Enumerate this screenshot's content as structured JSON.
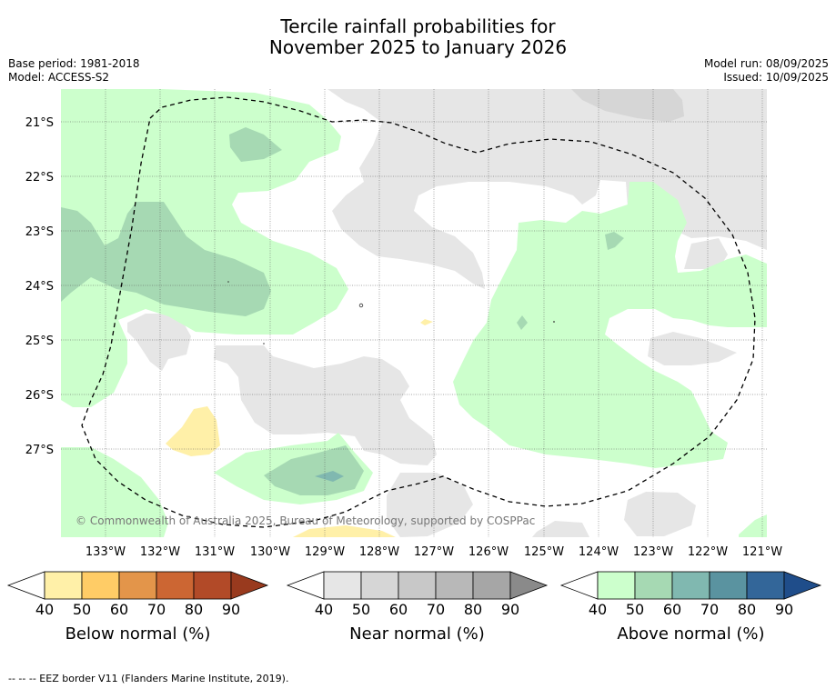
{
  "title_line1": "Tercile rainfall probabilities for",
  "title_line2": "November 2025 to January 2026",
  "base_period": "Base period: 1981-2018",
  "model": "Model: ACCESS-S2",
  "model_run": "Model run: 08/09/2025",
  "issued": "Issued: 10/09/2025",
  "copyright": "© Commonwealth of Australia 2025, Bureau of Meteorology, supported by COSPPac",
  "footer": "--  --  -- EEZ border V11 (Flanders Marine Institute, 2019).",
  "map": {
    "lat_labels": [
      "21°S",
      "22°S",
      "23°S",
      "24°S",
      "25°S",
      "26°S",
      "27°S"
    ],
    "lon_labels": [
      "133°W",
      "132°W",
      "131°W",
      "130°W",
      "129°W",
      "128°W",
      "127°W",
      "126°W",
      "125°W",
      "124°W",
      "123°W",
      "122°W",
      "121°W"
    ]
  },
  "colorbars": [
    {
      "label": "Below normal (%)",
      "ticks": [
        "40",
        "50",
        "60",
        "70",
        "80",
        "90"
      ],
      "colors": [
        "#fff0a8",
        "#ffcc66",
        "#e3954a",
        "#cc6633",
        "#b24a28",
        "#993a1e"
      ]
    },
    {
      "label": "Near normal (%)",
      "ticks": [
        "40",
        "50",
        "60",
        "70",
        "80",
        "90"
      ],
      "colors": [
        "#e6e6e6",
        "#d6d6d6",
        "#c8c8c8",
        "#b8b8b8",
        "#a6a6a6",
        "#8a8a8a"
      ]
    },
    {
      "label": "Above normal (%)",
      "ticks": [
        "40",
        "50",
        "60",
        "70",
        "80",
        "90"
      ],
      "colors": [
        "#ccffcc",
        "#a6d9b3",
        "#80b8b0",
        "#5a93a0",
        "#336699",
        "#1f4d8a"
      ]
    }
  ]
}
